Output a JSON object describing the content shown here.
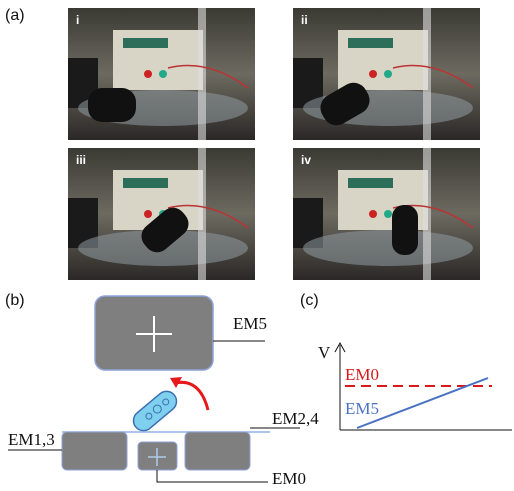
{
  "panel_a": {
    "label": "(a)",
    "photos": [
      "i",
      "ii",
      "iii",
      "iv"
    ]
  },
  "panel_b": {
    "label": "(b)",
    "em5": "EM5",
    "em13": "EM1,3",
    "em24": "EM2,4",
    "em0": "EM0"
  },
  "panel_c": {
    "label": "(c)",
    "axis": "V",
    "em0": "EM0",
    "em5": "EM5"
  }
}
